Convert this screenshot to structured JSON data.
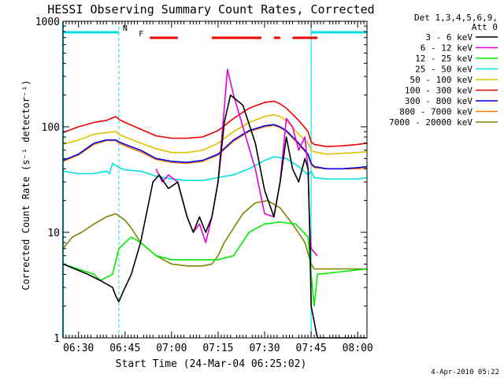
{
  "chart_data": {
    "type": "line",
    "title": "HESSI Observing Summary Count Rates, Corrected",
    "xlabel": "Start Time (24-Mar-04 06:25:02)",
    "ylabel": "Corrected Count Rate (s⁻¹ detector⁻¹)",
    "yscale": "log",
    "ylim": [
      1,
      1000
    ],
    "xlim_minutes_after_0625": [
      0,
      98
    ],
    "x_ticks": [
      {
        "label": "06:30",
        "minutes": 5
      },
      {
        "label": "06:45",
        "minutes": 20
      },
      {
        "label": "07:00",
        "minutes": 35
      },
      {
        "label": "07:15",
        "minutes": 50
      },
      {
        "label": "07:30",
        "minutes": 65
      },
      {
        "label": "07:45",
        "minutes": 80
      },
      {
        "label": "08:00",
        "minutes": 95
      }
    ],
    "y_ticks": [
      {
        "label": "1",
        "value": 1
      },
      {
        "label": "10",
        "value": 10
      },
      {
        "label": "100",
        "value": 100
      },
      {
        "label": "1000",
        "value": 1000
      }
    ],
    "legend_header": [
      "Det 1,3,4,5,6,9,",
      "Att 0"
    ],
    "date_stamp": "4-Apr-2010 05:22",
    "flags": [
      {
        "label": "N",
        "color": "#00e0e0",
        "segments": [
          [
            0,
            18
          ],
          [
            80,
            98
          ]
        ]
      },
      {
        "label": "F",
        "color": "#ee0000",
        "segments": [
          [
            28,
            37
          ],
          [
            48,
            64
          ],
          [
            68,
            70
          ],
          [
            74,
            82
          ]
        ]
      }
    ],
    "night_markers_minutes": [
      18,
      80
    ],
    "series": [
      {
        "name": "3 - 6 keV",
        "color": "#000000",
        "x": [
          0,
          8,
          12,
          16,
          17,
          18,
          20,
          22,
          25,
          29,
          31,
          34,
          37,
          40,
          42,
          44,
          46,
          48,
          50,
          52,
          54,
          58,
          62,
          65,
          68,
          70,
          72,
          74,
          76,
          78,
          79,
          79.5,
          80,
          82,
          98
        ],
        "values": [
          5,
          4,
          3.5,
          3,
          2.5,
          2.2,
          3,
          4,
          8,
          30,
          35,
          26,
          30,
          14,
          10,
          14,
          10,
          14,
          30,
          110,
          200,
          160,
          70,
          25,
          14,
          30,
          80,
          40,
          30,
          50,
          40,
          12,
          2,
          1,
          1
        ]
      },
      {
        "name": "6 - 12 keV",
        "color": "#e000e0",
        "x": [
          30,
          32,
          34,
          37,
          40,
          42,
          44,
          46,
          48,
          50,
          52,
          53,
          55,
          58,
          62,
          65,
          68,
          70,
          72,
          74,
          76,
          78,
          79,
          79.5,
          80,
          82
        ],
        "values": [
          40,
          30,
          35,
          30,
          14,
          10,
          12,
          8,
          14,
          30,
          150,
          350,
          200,
          100,
          40,
          15,
          14,
          30,
          120,
          100,
          60,
          80,
          40,
          12,
          7,
          6
        ]
      },
      {
        "name": "12 - 25 keV",
        "color": "#00ee00",
        "x": [
          0,
          10,
          12,
          16,
          18,
          20,
          22,
          25,
          30,
          35,
          40,
          45,
          50,
          55,
          60,
          65,
          70,
          75,
          79,
          80,
          81,
          82,
          98
        ],
        "values": [
          5,
          4,
          3.5,
          4,
          7,
          8,
          9,
          8,
          6,
          5.5,
          5.5,
          5.5,
          5.5,
          6,
          10,
          12,
          12.5,
          12,
          9,
          4,
          2,
          4,
          4.5
        ]
      },
      {
        "name": "25 - 50 keV",
        "color": "#00e0e0",
        "x": [
          0,
          5,
          10,
          14,
          15,
          16,
          17,
          18,
          20,
          25,
          30,
          35,
          40,
          45,
          50,
          55,
          60,
          65,
          68,
          72,
          76,
          79,
          80,
          81,
          85,
          90,
          95,
          98
        ],
        "values": [
          38,
          36,
          36,
          38,
          36,
          45,
          43,
          41,
          39,
          38,
          34,
          32,
          31,
          31,
          33,
          35,
          40,
          48,
          52,
          50,
          42,
          35,
          38,
          33,
          32,
          32,
          32,
          33
        ]
      },
      {
        "name": "50 - 100 keV",
        "color": "#e0c000",
        "x": [
          0,
          5,
          10,
          14,
          17,
          18,
          20,
          25,
          30,
          35,
          40,
          45,
          50,
          55,
          60,
          65,
          68,
          70,
          72,
          76,
          79,
          80,
          81,
          85,
          90,
          95,
          98
        ],
        "values": [
          68,
          75,
          85,
          88,
          90,
          85,
          80,
          70,
          62,
          57,
          57,
          60,
          70,
          90,
          110,
          125,
          130,
          125,
          115,
          85,
          70,
          60,
          58,
          55,
          56,
          57,
          58
        ]
      },
      {
        "name": "100 - 300 keV",
        "color": "#ee0000",
        "x": [
          0,
          5,
          10,
          14,
          17,
          18,
          20,
          25,
          30,
          35,
          40,
          45,
          50,
          55,
          60,
          65,
          68,
          70,
          72,
          76,
          79,
          80,
          81,
          85,
          90,
          95,
          98
        ],
        "values": [
          88,
          100,
          110,
          115,
          125,
          118,
          110,
          95,
          82,
          78,
          78,
          80,
          92,
          120,
          150,
          170,
          175,
          165,
          150,
          115,
          90,
          72,
          68,
          65,
          66,
          68,
          70
        ]
      },
      {
        "name": "300 - 800 keV",
        "color": "#0000ee",
        "x": [
          0,
          5,
          10,
          14,
          17,
          18,
          20,
          25,
          30,
          35,
          40,
          45,
          50,
          55,
          60,
          65,
          68,
          70,
          72,
          76,
          79,
          80,
          81,
          85,
          90,
          95,
          98
        ],
        "values": [
          48,
          55,
          70,
          75,
          75,
          72,
          68,
          60,
          50,
          47,
          46,
          48,
          55,
          75,
          92,
          102,
          105,
          100,
          92,
          70,
          55,
          45,
          42,
          40,
          40,
          41,
          42
        ]
      },
      {
        "name": "800 - 7000 keV",
        "color": "#ff8000",
        "x": [
          0,
          5,
          10,
          14,
          17,
          18,
          20,
          25,
          30,
          35,
          40,
          45,
          50,
          55,
          60,
          65,
          68,
          70,
          72,
          76,
          79,
          80,
          81,
          85,
          90,
          95,
          98
        ],
        "values": [
          47,
          54,
          68,
          74,
          74,
          70,
          66,
          58,
          49,
          46,
          45,
          47,
          54,
          73,
          90,
          100,
          103,
          98,
          90,
          68,
          54,
          44,
          41,
          40,
          40,
          40,
          41
        ]
      },
      {
        "name": "7000 - 20000 keV",
        "color": "#808000",
        "x": [
          0,
          3,
          6,
          10,
          14,
          17,
          20,
          22,
          25,
          30,
          35,
          40,
          45,
          48,
          50,
          52,
          55,
          58,
          62,
          66,
          70,
          74,
          78,
          80,
          81,
          85,
          90,
          95,
          98
        ],
        "values": [
          7,
          9,
          10,
          12,
          14,
          15,
          13,
          11,
          8,
          6,
          5,
          4.8,
          4.8,
          5,
          6,
          8,
          11,
          15,
          19,
          20,
          17,
          12,
          8,
          5,
          4.5,
          4.5,
          4.5,
          4.5,
          4.5
        ]
      }
    ]
  }
}
